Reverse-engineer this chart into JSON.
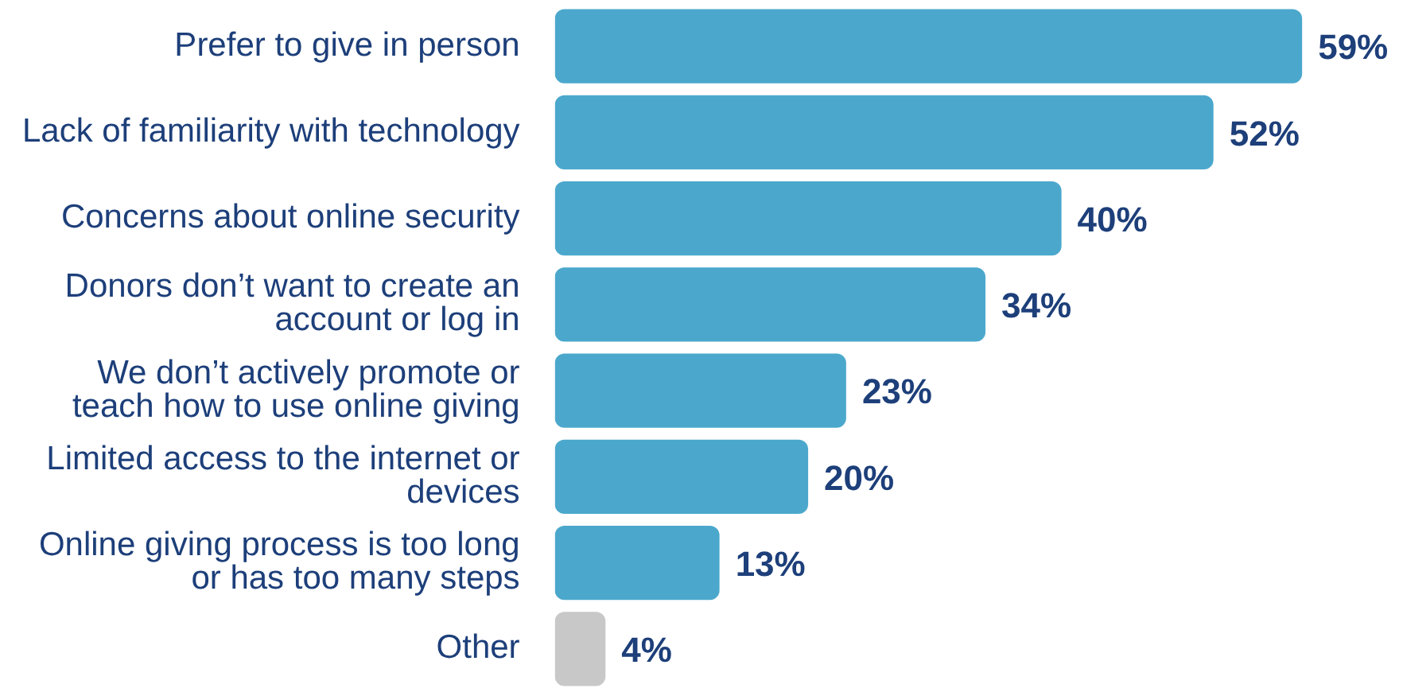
{
  "chart_data": {
    "type": "bar",
    "orientation": "horizontal",
    "categories": [
      "Prefer to give in person",
      "Lack of familiarity with technology",
      "Concerns about online security",
      "Donors don’t want to create an account or log in",
      "We don’t actively promote or teach how to use online giving",
      "Limited access to the internet or devices",
      "Online giving process is too long or has too many steps",
      "Other"
    ],
    "values": [
      59,
      52,
      40,
      34,
      23,
      20,
      13,
      4
    ],
    "colors": [
      "#4ba8cc",
      "#4ba8cc",
      "#4ba8cc",
      "#4ba8cc",
      "#4ba8cc",
      "#4ba8cc",
      "#4ba8cc",
      "#c8c8c8"
    ],
    "value_labels": [
      "59%",
      "52%",
      "40%",
      "34%",
      "23%",
      "20%",
      "13%",
      "4%"
    ],
    "legend": false
  }
}
